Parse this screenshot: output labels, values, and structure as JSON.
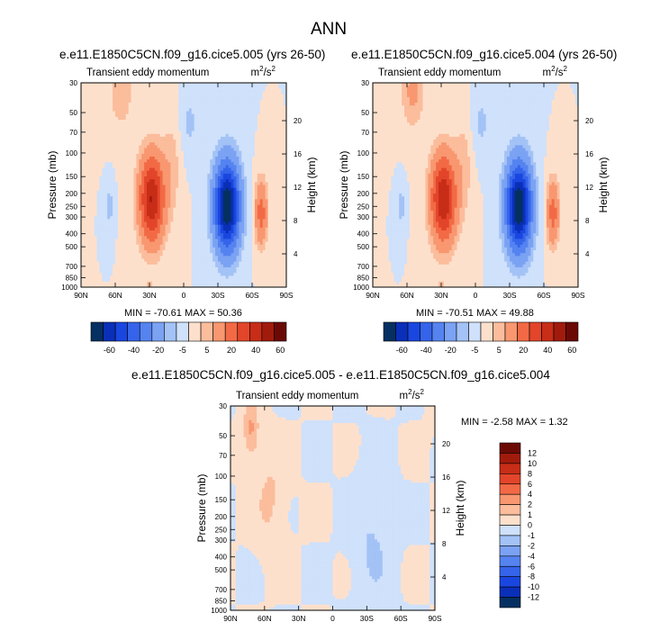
{
  "figure": {
    "title": "ANN"
  },
  "chart_data": [
    {
      "type": "contour",
      "title": "e.e11.E1850C5CN.f09_g16.cice5.005 (yrs 26-50)",
      "left_string": "Transient eddy momentum",
      "right_string": "m²/s²",
      "units_base": "m",
      "units_exp1": "2",
      "units_mid": "/s",
      "units_exp2": "2",
      "ylabel": "Pressure (mb)",
      "y2label": "Height (km)",
      "x_ticks": [
        "90N",
        "60N",
        "30N",
        "0",
        "30S",
        "60S",
        "90S"
      ],
      "y_ticks": [
        "30",
        "50",
        "70",
        "100",
        "150",
        "200",
        "250",
        "300",
        "400",
        "500",
        "700",
        "850",
        "1000"
      ],
      "y2_ticks": [
        "20",
        "16",
        "12",
        "8",
        "4"
      ],
      "stats_text": "MIN = -70.61  MAX = 50.36",
      "min": -70.61,
      "max": 50.36,
      "colorbar_labels": [
        "-60",
        "-40",
        "-20",
        "-5",
        "5",
        "20",
        "40",
        "60"
      ],
      "features": [
        {
          "lat": 28,
          "p": 220,
          "value": 50.36
        },
        {
          "lat": -38,
          "p": 250,
          "value": -70.61
        },
        {
          "lat": -68,
          "p": 280,
          "value": 25
        },
        {
          "lat": 55,
          "p": 35,
          "value": 10
        },
        {
          "lat": 65,
          "p": 250,
          "value": -8
        }
      ]
    },
    {
      "type": "contour",
      "title": "e.e11.E1850C5CN.f09_g16.cice5.004 (yrs 26-50)",
      "left_string": "Transient eddy momentum",
      "right_string": "m²/s²",
      "units_base": "m",
      "units_exp1": "2",
      "units_mid": "/s",
      "units_exp2": "2",
      "ylabel": "Pressure (mb)",
      "y2label": "Height (km)",
      "x_ticks": [
        "90N",
        "60N",
        "30N",
        "0",
        "30S",
        "60S",
        "90S"
      ],
      "y_ticks": [
        "30",
        "50",
        "70",
        "100",
        "150",
        "200",
        "250",
        "300",
        "400",
        "500",
        "700",
        "850",
        "1000"
      ],
      "y2_ticks": [
        "20",
        "16",
        "12",
        "8",
        "4"
      ],
      "stats_text": "MIN = -70.51  MAX = 49.88",
      "min": -70.51,
      "max": 49.88,
      "colorbar_labels": [
        "-60",
        "-40",
        "-20",
        "-5",
        "5",
        "20",
        "40",
        "60"
      ],
      "features": [
        {
          "lat": 28,
          "p": 220,
          "value": 49.88
        },
        {
          "lat": -38,
          "p": 250,
          "value": -70.51
        },
        {
          "lat": -68,
          "p": 280,
          "value": 25
        },
        {
          "lat": 55,
          "p": 35,
          "value": 12
        },
        {
          "lat": 65,
          "p": 250,
          "value": -8
        }
      ]
    },
    {
      "type": "contour",
      "title": "e.e11.E1850C5CN.f09_g16.cice5.005 - e.e11.E1850C5CN.f09_g16.cice5.004",
      "left_string": "Transient eddy momentum",
      "right_string": "m²/s²",
      "units_base": "m",
      "units_exp1": "2",
      "units_mid": "/s",
      "units_exp2": "2",
      "ylabel": "Pressure (mb)",
      "y2label": "Height (km)",
      "x_ticks": [
        "90N",
        "60N",
        "30N",
        "0",
        "30S",
        "60S",
        "90S"
      ],
      "y_ticks": [
        "30",
        "50",
        "70",
        "100",
        "150",
        "200",
        "250",
        "300",
        "400",
        "500",
        "700",
        "850",
        "1000"
      ],
      "y2_ticks": [
        "20",
        "16",
        "12",
        "8",
        "4"
      ],
      "stats_text": "MIN = -2.58  MAX =  1.32",
      "min": -2.58,
      "max": 1.32,
      "colorbar_labels": [
        "12",
        "10",
        "8",
        "6",
        "4",
        "2",
        "1",
        "0",
        "-1",
        "-2",
        "-4",
        "-6",
        "-8",
        "-10",
        "-12"
      ]
    }
  ],
  "colors": {
    "scale16": [
      "#053061",
      "#0a2fb8",
      "#1a46e0",
      "#3564ea",
      "#5583f0",
      "#7ba2f3",
      "#a3c2f6",
      "#cfe1fb",
      "#fde0cc",
      "#fbbd9c",
      "#f89770",
      "#f26a45",
      "#e2452a",
      "#c72d17",
      "#a11b0c",
      "#6b0a04"
    ],
    "diff": [
      "#6b0a04",
      "#a11b0c",
      "#c72d17",
      "#e2452a",
      "#f26a45",
      "#f89770",
      "#fbbd9c",
      "#fde0cc",
      "#cfe1fb",
      "#a3c2f6",
      "#7ba2f3",
      "#5583f0",
      "#3564ea",
      "#1a46e0",
      "#0a2fb8",
      "#053061"
    ]
  }
}
